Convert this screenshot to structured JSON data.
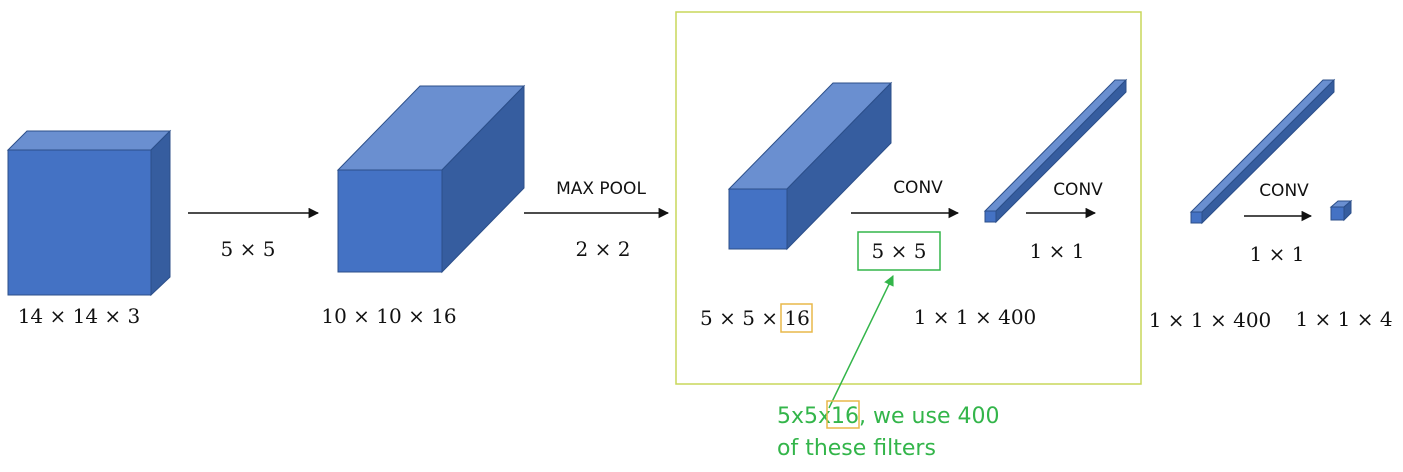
{
  "colors": {
    "box_front": "#4472c4",
    "box_top": "#6a8fd0",
    "box_side": "#365d9f",
    "box_edge": "#2c4f8a",
    "frame": "#c9d75a",
    "highlight_box": "#e8b84a",
    "note_green": "#33b54a",
    "arrow": "#111111"
  },
  "volumes": {
    "input": "14 × 14 × 3",
    "conv1_out": "10 × 10 × 16",
    "pool_out_prefix": "5 × 5 × ",
    "pool_out_depth": "16",
    "conv2_out": "1 × 1 × 400",
    "conv3_out": "1 × 1 × 400",
    "final_out": "1 × 1 × 4"
  },
  "operations": {
    "conv1_filter": "5 × 5",
    "pool_label": "MAX POOL",
    "pool_size": "2 × 2",
    "conv2_label": "CONV",
    "conv2_filter": "5 × 5",
    "conv3_label": "CONV",
    "conv3_filter": "1 × 1",
    "conv4_label": "CONV",
    "conv4_filter": "1 × 1"
  },
  "annotation": {
    "line1_prefix": "5x5x",
    "line1_highlight": "16,",
    "line1_suffix": " we use 400",
    "line2": "of these filters"
  }
}
